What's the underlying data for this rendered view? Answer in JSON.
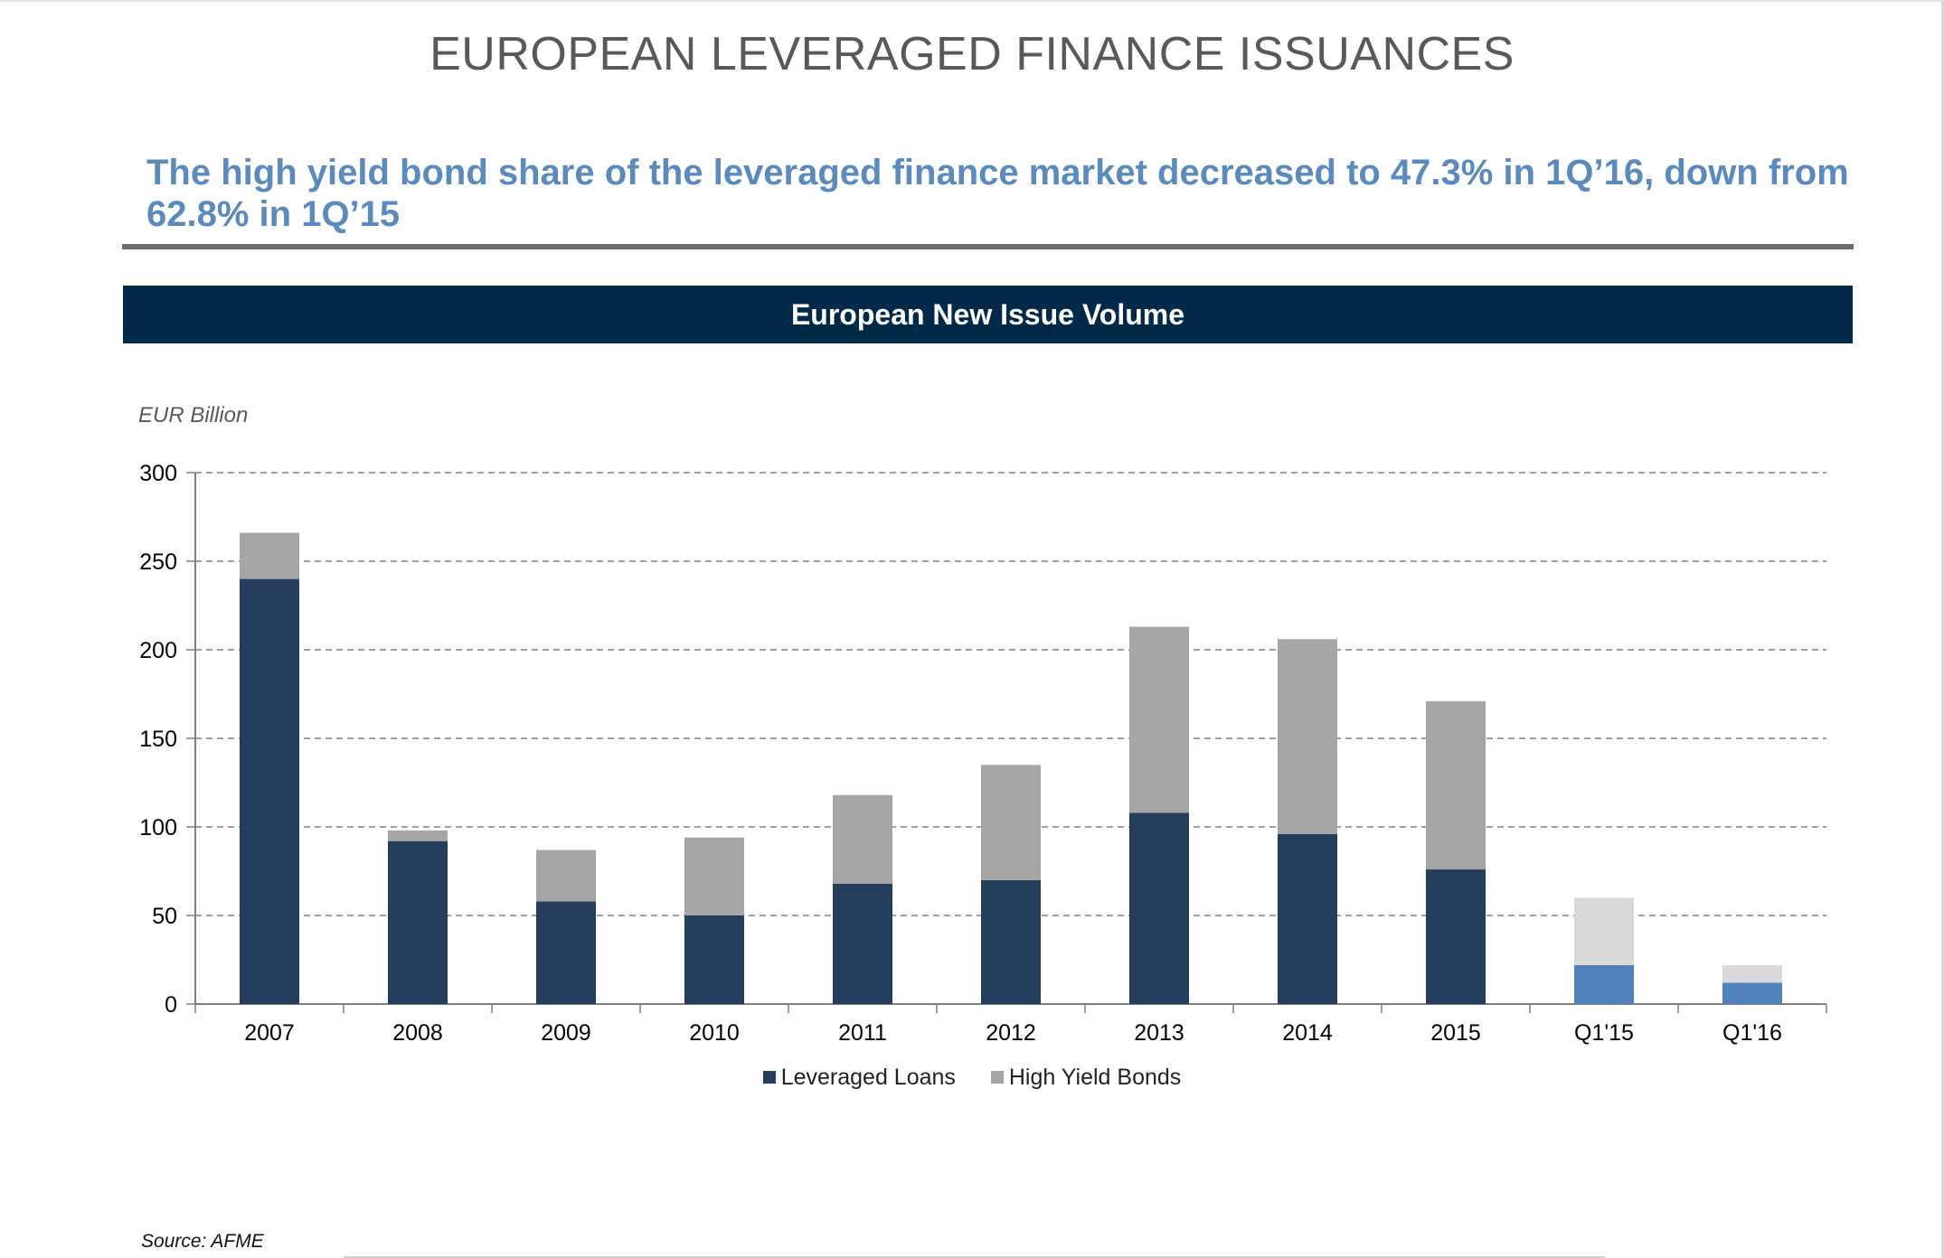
{
  "page": {
    "title": "EUROPEAN LEVERAGED FINANCE ISSUANCES",
    "headline": "The high yield bond share of the leveraged finance market decreased to 47.3% in 1Q’16, down from 62.8% in 1Q’15",
    "source": "Source: AFME"
  },
  "chart_data": {
    "type": "bar",
    "stacked": true,
    "title": "European New Issue Volume",
    "ylabel": "EUR Billion",
    "xlabel": "",
    "ylim": [
      0,
      300
    ],
    "yticks": [
      0,
      50,
      100,
      150,
      200,
      250,
      300
    ],
    "grid": true,
    "legend_position": "bottom",
    "categories": [
      "2007",
      "2008",
      "2009",
      "2010",
      "2011",
      "2012",
      "2013",
      "2014",
      "2015",
      "Q1'15",
      "Q1'16"
    ],
    "series": [
      {
        "name": "Leveraged Loans",
        "values": [
          240,
          92,
          58,
          50,
          68,
          70,
          108,
          96,
          76,
          22,
          12
        ],
        "color": "#253e5e",
        "highlight_color": "#4f81bd"
      },
      {
        "name": "High Yield Bonds",
        "values": [
          26,
          6,
          29,
          44,
          50,
          65,
          105,
          110,
          95,
          38,
          10
        ],
        "color": "#a6a6a6",
        "highlight_color": "#d9d9d9"
      }
    ],
    "highlighted_categories": [
      "Q1'15",
      "Q1'16"
    ]
  }
}
